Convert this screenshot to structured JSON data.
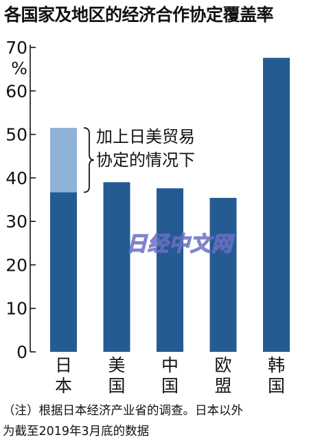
{
  "chart_data": {
    "type": "bar",
    "title": "各国家及地区的经济合作协定覆盖率",
    "unit": "%",
    "ylim": [
      0,
      70
    ],
    "yticks": [
      0,
      10,
      20,
      30,
      40,
      50,
      60,
      70
    ],
    "grid": false,
    "categories": [
      "日本",
      "美国",
      "中国",
      "欧盟",
      "韩国"
    ],
    "series": [
      {
        "values": [
          36.7,
          39.0,
          37.6,
          35.4,
          67.6
        ],
        "color": "#245b93"
      },
      {
        "values": [
          14.8,
          0,
          0,
          0,
          0
        ],
        "color": "#8fb3d6"
      }
    ],
    "annotation": "加上日美贸易协定的情况下",
    "annotation_lines": [
      "加上日美贸易",
      "协定的情况下"
    ]
  },
  "footnote": {
    "line1": "（注）根据日本经济产业省的调查。日本以外",
    "line2": "为截至2019年3月底的数据"
  },
  "watermark": "日经中文网"
}
